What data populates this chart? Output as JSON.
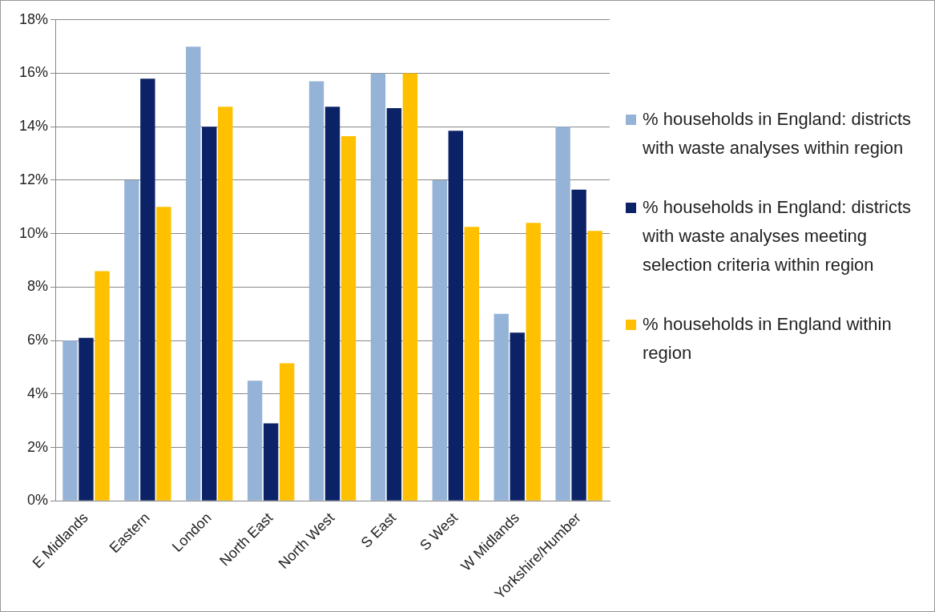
{
  "chart_data": {
    "type": "bar",
    "categories": [
      "E Midlands",
      "Eastern",
      "London",
      "North East",
      "North West",
      "S East",
      "S West",
      "W Midlands",
      "Yorkshire/Humber"
    ],
    "series": [
      {
        "name": "% households in England: districts with waste analyses within region",
        "color": "#95b3d7",
        "values": [
          6.0,
          12,
          17,
          4.5,
          15.7,
          16,
          12,
          7,
          14
        ]
      },
      {
        "name": "% households in England: districts with waste analyses meeting selection criteria within region",
        "color": "#0c2266",
        "values": [
          6.1,
          15.8,
          14,
          2.9,
          14.75,
          14.7,
          13.85,
          6.3,
          11.65
        ]
      },
      {
        "name": "% households in England within region",
        "color": "#ffc000",
        "values": [
          8.6,
          11,
          14.75,
          5.15,
          13.65,
          16,
          10.25,
          10.4,
          10.1
        ]
      }
    ],
    "ylim": [
      0,
      18
    ],
    "yticks": [
      {
        "value": 0,
        "label": "0%"
      },
      {
        "value": 2,
        "label": "2%"
      },
      {
        "value": 4,
        "label": "4%"
      },
      {
        "value": 6,
        "label": "6%"
      },
      {
        "value": 8,
        "label": "8%"
      },
      {
        "value": 10,
        "label": "10%"
      },
      {
        "value": 12,
        "label": "12%"
      },
      {
        "value": 14,
        "label": "14%"
      },
      {
        "value": 16,
        "label": "16%"
      },
      {
        "value": 18,
        "label": "18%"
      }
    ],
    "grid": "y",
    "legend": "right"
  }
}
